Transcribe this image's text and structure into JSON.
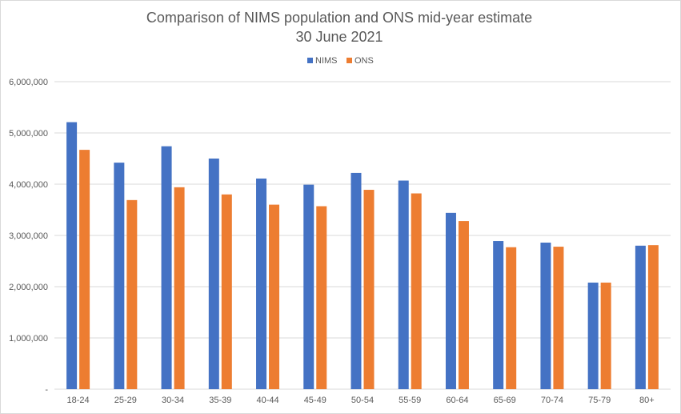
{
  "chart_data": {
    "type": "bar",
    "title": "Comparison of NIMS population and ONS mid-year estimate",
    "subtitle": "30 June 2021",
    "xlabel": "",
    "ylabel": "",
    "categories": [
      "18-24",
      "25-29",
      "30-34",
      "35-39",
      "40-44",
      "45-49",
      "50-54",
      "55-59",
      "60-64",
      "65-69",
      "70-74",
      "75-79",
      "80+"
    ],
    "series": [
      {
        "name": "NIMS",
        "color": "#4472C4",
        "values": [
          5210000,
          4420000,
          4740000,
          4500000,
          4110000,
          3990000,
          4220000,
          4070000,
          3440000,
          2890000,
          2860000,
          2080000,
          2800000
        ]
      },
      {
        "name": "ONS",
        "color": "#ED7D31",
        "values": [
          4670000,
          3690000,
          3940000,
          3800000,
          3600000,
          3570000,
          3890000,
          3820000,
          3280000,
          2770000,
          2780000,
          2080000,
          2810000
        ]
      }
    ],
    "ylim": [
      0,
      6000000
    ],
    "yticks": [
      0,
      1000000,
      2000000,
      3000000,
      4000000,
      5000000,
      6000000
    ],
    "ytick_labels": [
      "-",
      "1,000,000",
      "2,000,000",
      "3,000,000",
      "4,000,000",
      "5,000,000",
      "6,000,000"
    ],
    "grid": true,
    "legend_position": "top-center"
  }
}
